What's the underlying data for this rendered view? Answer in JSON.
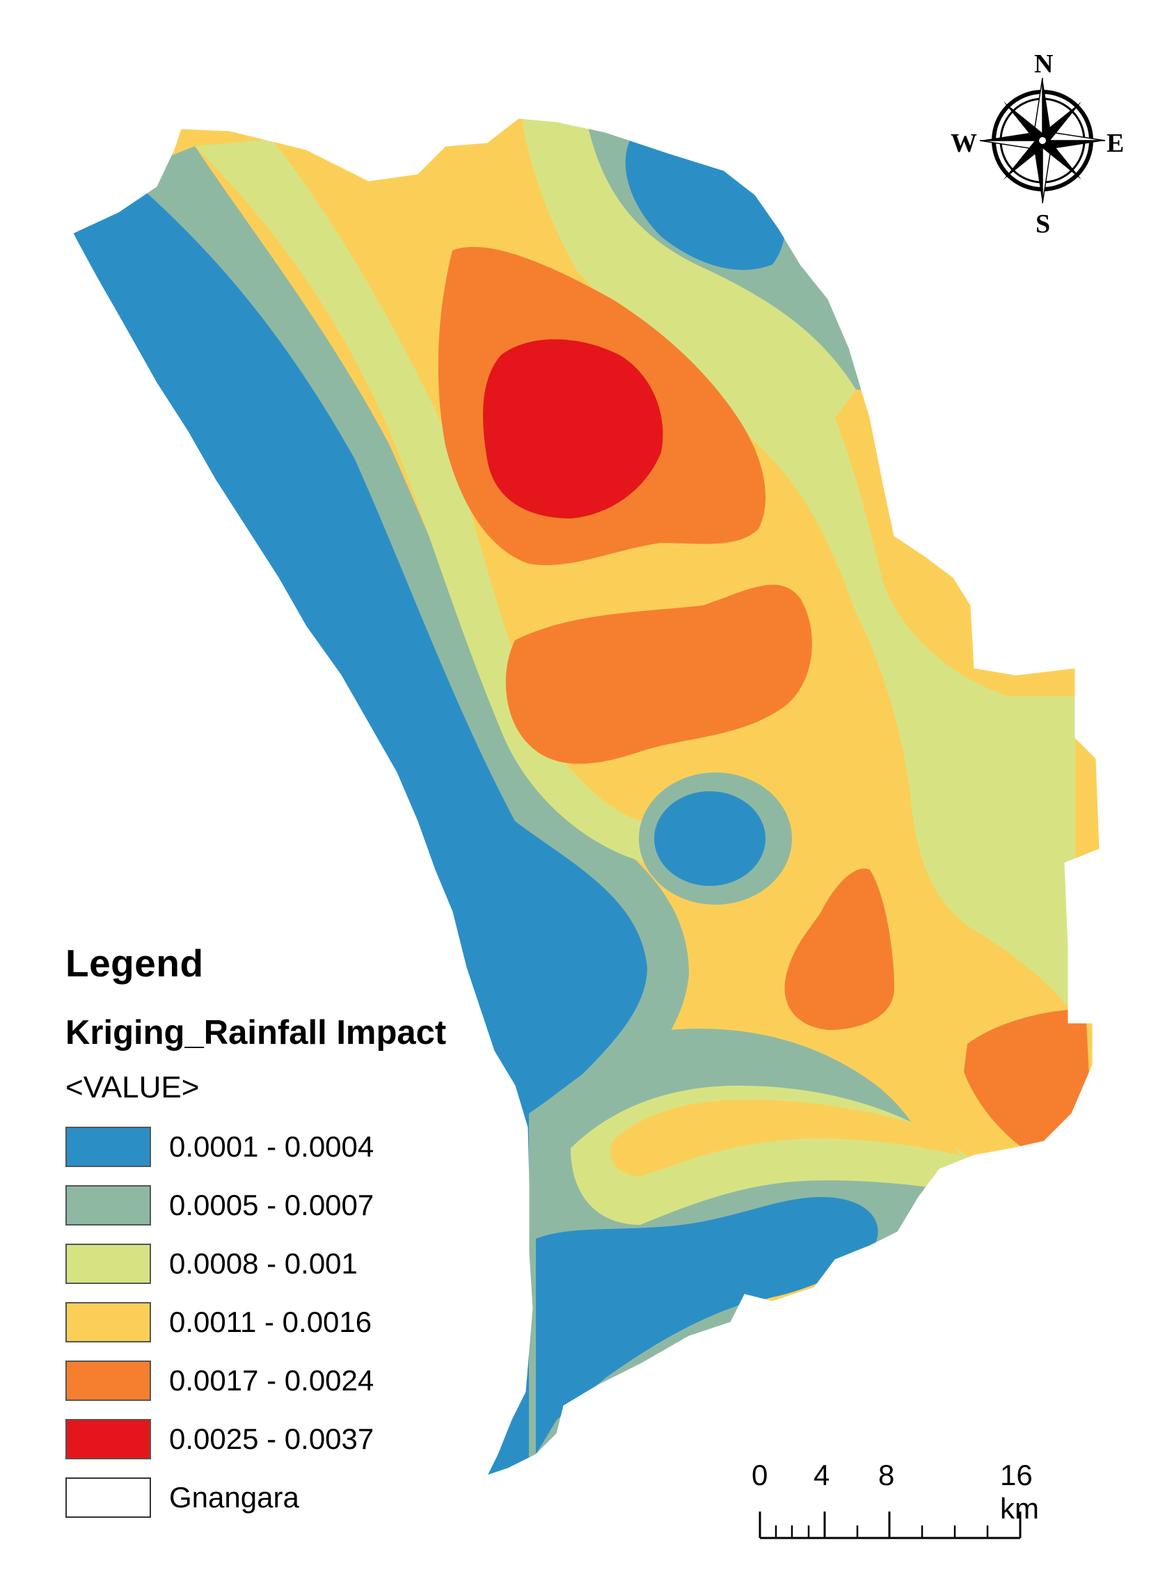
{
  "legend": {
    "title": "Legend",
    "layer_name": "Kriging_Rainfall Impact",
    "field_name": "<VALUE>",
    "classes": [
      {
        "label": "0.0001 - 0.0004",
        "color": "#2b8fc6"
      },
      {
        "label": "0.0005 - 0.0007",
        "color": "#8fb8a3"
      },
      {
        "label": "0.0008 - 0.001",
        "color": "#d7e383"
      },
      {
        "label": "0.0011 - 0.0016",
        "color": "#fbcf57"
      },
      {
        "label": "0.0017 - 0.0024",
        "color": "#f57f2f"
      },
      {
        "label": "0.0025 - 0.0037",
        "color": "#e4161b"
      }
    ],
    "boundary": {
      "label": "Gnangara"
    }
  },
  "north_arrow": {
    "n": "N",
    "s": "S",
    "e": "E",
    "w": "W",
    "icon": "compass-rose-icon"
  },
  "scale_bar": {
    "labels": [
      "0",
      "4",
      "8",
      "16 km"
    ]
  }
}
